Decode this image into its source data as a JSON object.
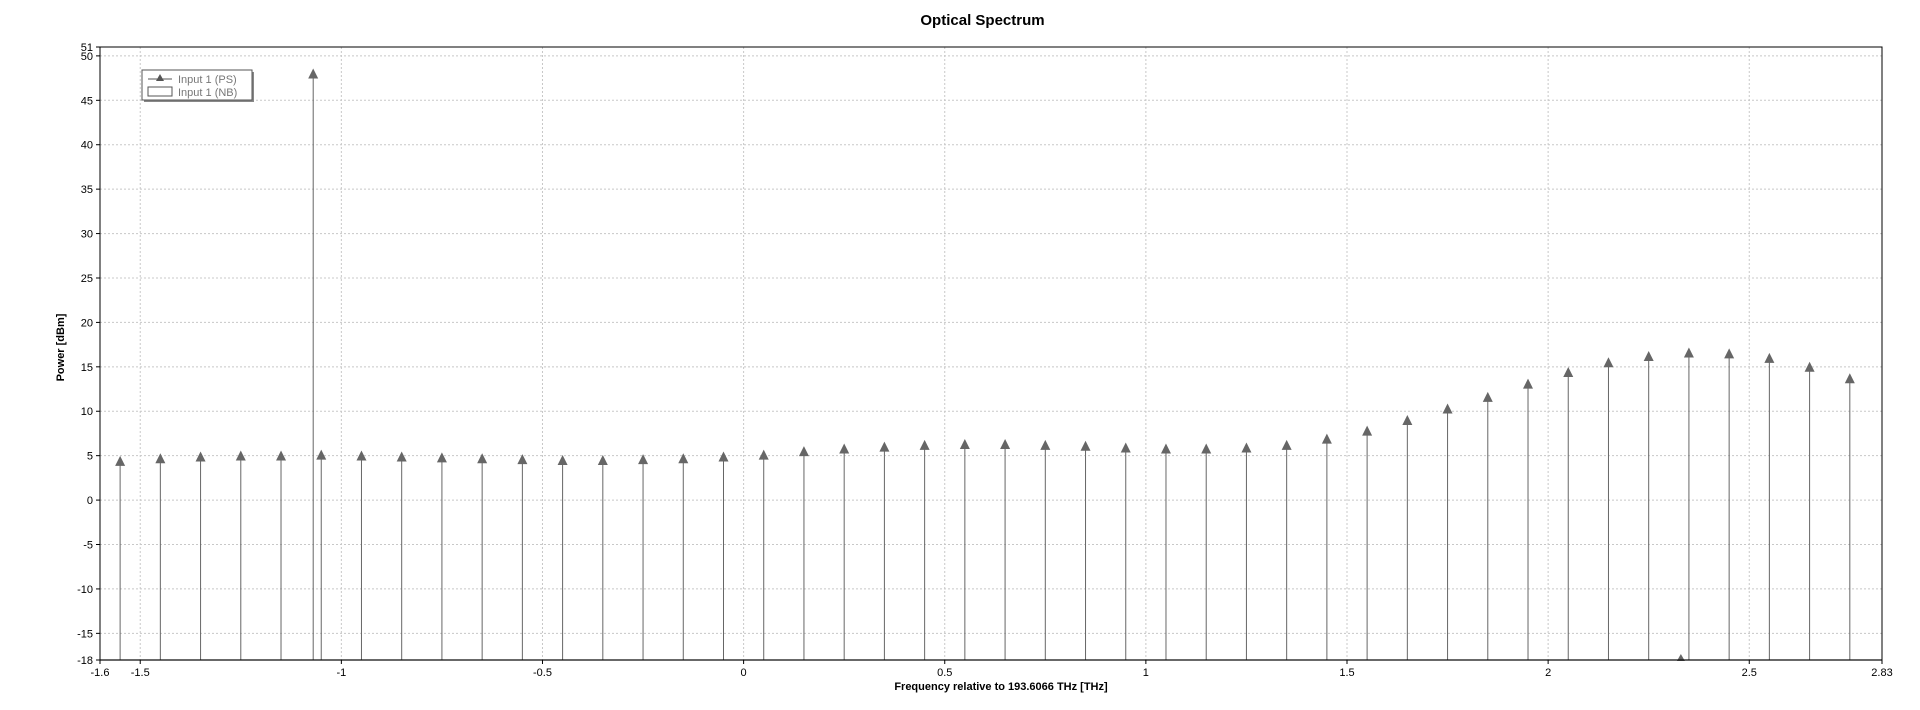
{
  "chart_data": {
    "type": "line",
    "title": "Optical Spectrum",
    "xlabel": "Frequency relative to 193.6066 THz [THz]",
    "ylabel": "Power [dBm]",
    "xlim": [
      -1.6,
      2.83
    ],
    "ylim": [
      -18,
      51
    ],
    "x_ticks": [
      "-1.6",
      "-1.5",
      "-1",
      "-0.5",
      "0",
      "0.5",
      "1",
      "1.5",
      "2",
      "2.5",
      "2.83"
    ],
    "x_tick_values": [
      -1.6,
      -1.5,
      -1,
      -0.5,
      0,
      0.5,
      1,
      1.5,
      2,
      2.5,
      2.83
    ],
    "y_ticks": [
      "51",
      "50",
      "45",
      "40",
      "35",
      "30",
      "25",
      "20",
      "15",
      "10",
      "5",
      "0",
      "-5",
      "-10",
      "-15",
      "-18"
    ],
    "y_tick_values": [
      51,
      50,
      45,
      40,
      35,
      30,
      25,
      20,
      15,
      10,
      5,
      0,
      -5,
      -10,
      -15,
      -18
    ],
    "grid": true,
    "legend_position": "top-left",
    "colors": {
      "series": "#666666",
      "grid": "#c8c8c8",
      "frame": "#000000"
    },
    "series": [
      {
        "name": "Input 1 (PS)",
        "style": "stem-triangle",
        "x": [
          -1.55,
          -1.45,
          -1.35,
          -1.25,
          -1.15,
          -1.05,
          -0.95,
          -0.85,
          -0.75,
          -0.65,
          -0.55,
          -0.45,
          -0.35,
          -0.25,
          -0.15,
          -0.05,
          0.05,
          0.15,
          0.25,
          0.35,
          0.45,
          0.55,
          0.65,
          0.75,
          0.85,
          0.95,
          1.05,
          1.15,
          1.25,
          1.35,
          1.45,
          1.55,
          1.65,
          1.75,
          1.85,
          1.95,
          2.05,
          2.15,
          2.25,
          2.35,
          2.45,
          2.55,
          2.65,
          2.75
        ],
        "y": [
          4.3,
          4.6,
          4.8,
          4.9,
          4.9,
          5.0,
          4.9,
          4.8,
          4.7,
          4.6,
          4.5,
          4.4,
          4.4,
          4.5,
          4.6,
          4.8,
          5.0,
          5.4,
          5.7,
          5.9,
          6.1,
          6.2,
          6.2,
          6.1,
          6.0,
          5.8,
          5.7,
          5.7,
          5.8,
          6.1,
          6.8,
          7.7,
          8.9,
          10.2,
          11.5,
          13.0,
          14.3,
          15.4,
          16.1,
          16.5,
          16.4,
          15.9,
          14.9,
          13.6
        ]
      },
      {
        "name": "Input 1 (NB)",
        "style": "stem-triangle",
        "x": [
          -1.07
        ],
        "y": [
          47.9
        ]
      }
    ],
    "floor_marker": {
      "x": 2.33,
      "y": -18
    }
  }
}
